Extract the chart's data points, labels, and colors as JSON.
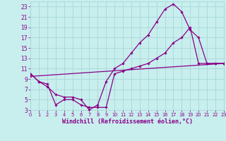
{
  "xlabel": "Windchill (Refroidissement éolien,°C)",
  "bg_color": "#c8eeee",
  "grid_color": "#a8d8d8",
  "line_color": "#880088",
  "xlim": [
    0,
    23
  ],
  "ylim": [
    3,
    24
  ],
  "xticks": [
    0,
    1,
    2,
    3,
    4,
    5,
    6,
    7,
    8,
    9,
    10,
    11,
    12,
    13,
    14,
    15,
    16,
    17,
    18,
    19,
    20,
    21,
    22,
    23
  ],
  "yticks": [
    3,
    5,
    7,
    9,
    11,
    13,
    15,
    17,
    19,
    21,
    23
  ],
  "curve1_x": [
    0,
    1,
    2,
    3,
    4,
    5,
    6,
    7,
    8,
    9,
    10,
    11,
    12,
    13,
    14,
    15,
    16,
    17,
    18,
    19,
    20,
    21,
    22,
    23
  ],
  "curve1_y": [
    10,
    8.5,
    7.5,
    6,
    5.5,
    5.5,
    5,
    3,
    4,
    8.5,
    11,
    12,
    14,
    16,
    17.5,
    20,
    22.5,
    23.5,
    22,
    18.5,
    17,
    12,
    12,
    12
  ],
  "curve2_x": [
    0,
    1,
    2,
    3,
    4,
    5,
    6,
    7,
    8,
    9,
    10,
    11,
    12,
    13,
    14,
    15,
    16,
    17,
    18,
    19,
    20,
    21,
    22,
    23
  ],
  "curve2_y": [
    10,
    8.5,
    8,
    4,
    5,
    5,
    4,
    3.5,
    3.5,
    3.5,
    10,
    10.5,
    11,
    11.5,
    12,
    13,
    14,
    16,
    17,
    19,
    12,
    12,
    12,
    12
  ],
  "curve3_x": [
    0,
    23
  ],
  "curve3_y": [
    9.5,
    12
  ],
  "tick_fontsize": 5.5,
  "xlabel_fontsize": 6.0
}
